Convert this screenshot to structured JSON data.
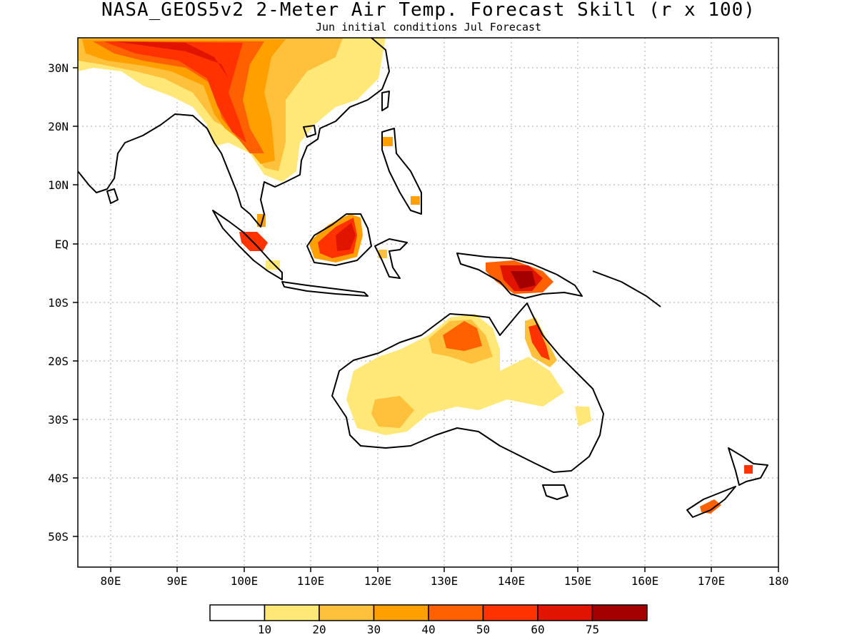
{
  "title": "NASA_GEOS5v2 2-Meter Air Temp. Forecast Skill (r x 100)",
  "subtitle": "Jun initial conditions  Jul Forecast",
  "map": {
    "lon_range": [
      75,
      180
    ],
    "lat_range": [
      -55,
      35
    ],
    "x_ticks": [
      "80E",
      "90E",
      "100E",
      "110E",
      "120E",
      "130E",
      "140E",
      "150E",
      "160E",
      "170E",
      "180"
    ],
    "y_ticks": [
      "30N",
      "20N",
      "10N",
      "EQ",
      "10S",
      "20S",
      "30S",
      "40S",
      "50S"
    ],
    "gridlines": "dotted"
  },
  "colorbar": {
    "colors": [
      "#ffffff",
      "#ffe878",
      "#ffc03c",
      "#ffa000",
      "#ff6000",
      "#ff3200",
      "#e11400",
      "#a50000"
    ],
    "labels": [
      "10",
      "20",
      "30",
      "40",
      "50",
      "60",
      "75"
    ]
  }
}
